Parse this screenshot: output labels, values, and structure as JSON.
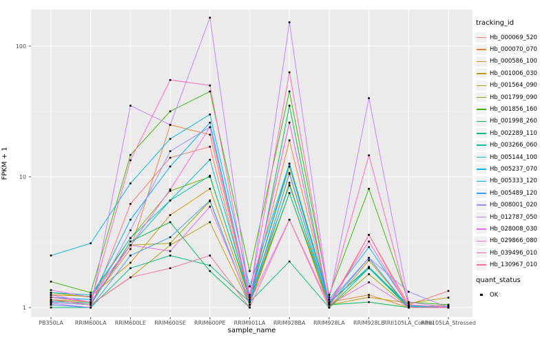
{
  "axes": {
    "x_title": "sample_name",
    "y_title": "FPKM + 1"
  },
  "legend": {
    "title": "tracking_id",
    "position": "right"
  },
  "quant_legend": {
    "title": "quant_status",
    "items": [
      {
        "label": "OK",
        "marker": "black-square"
      }
    ]
  },
  "chart_data": {
    "type": "line",
    "title": "",
    "xlabel": "sample_name",
    "ylabel": "FPKM + 1",
    "y_scale": "log10",
    "ylim": [
      0.85,
      190
    ],
    "grid": true,
    "panel_background": "#EBEBEB",
    "gridline_color": "#FFFFFF",
    "point_marker": "black-square",
    "legend_title": "tracking_id",
    "quant_status_title": "quant_status",
    "quant_status_value": "OK",
    "y_ticks": [
      {
        "v": 1,
        "label": "1"
      },
      {
        "v": 10,
        "label": "10"
      },
      {
        "v": 100,
        "label": "100"
      }
    ],
    "y_minor_ticks": [
      3.162,
      31.62
    ],
    "x_categories": [
      "PB350LA",
      "RRIM600LA",
      "RRIM600LE",
      "RRIM600SE",
      "RRIM600PE",
      "RRIM901LA",
      "RRIM928BA",
      "RRIM928LA",
      "RRIM928LE",
      "RRII105LA_Control",
      "RRII105LA_Stressed"
    ],
    "series": [
      {
        "name": "Hb_000069_520",
        "color": "#F8766D",
        "values": [
          1.05,
          1.0,
          6.2,
          14.0,
          17.0,
          1.1,
          10.5,
          1.05,
          3.6,
          1.05,
          1.34
        ]
      },
      {
        "name": "Hb_000070_070",
        "color": "#EA8331",
        "values": [
          1.2,
          1.1,
          2.8,
          25.0,
          21.0,
          1.15,
          19.0,
          1.1,
          1.25,
          1.0,
          1.05
        ]
      },
      {
        "name": "Hb_000586_100",
        "color": "#D89000",
        "values": [
          1.25,
          1.22,
          2.2,
          5.1,
          8.1,
          1.1,
          7.5,
          1.0,
          2.3,
          1.0,
          1.0
        ]
      },
      {
        "name": "Hb_001006_030",
        "color": "#C09B00",
        "values": [
          1.1,
          1.05,
          1.7,
          3.0,
          4.5,
          1.05,
          7.5,
          1.05,
          1.2,
          1.08,
          1.19
        ]
      },
      {
        "name": "Hb_001564_090",
        "color": "#A3A500",
        "values": [
          1.15,
          1.1,
          3.0,
          3.1,
          6.5,
          1.05,
          9.0,
          1.0,
          1.8,
          1.0,
          1.02
        ]
      },
      {
        "name": "Hb_001799_090",
        "color": "#7CAE00",
        "values": [
          1.3,
          1.2,
          3.4,
          7.8,
          10.0,
          1.2,
          12.0,
          1.1,
          2.0,
          1.05,
          1.0
        ]
      },
      {
        "name": "Hb_001856_160",
        "color": "#39B600",
        "values": [
          1.58,
          1.3,
          14.7,
          31.7,
          45.0,
          1.9,
          45.0,
          1.25,
          8.1,
          1.1,
          1.05
        ]
      },
      {
        "name": "Hb_001998_260",
        "color": "#00BB4E",
        "values": [
          1.1,
          1.05,
          3.2,
          4.5,
          1.9,
          1.0,
          35.0,
          1.05,
          1.1,
          1.0,
          1.0
        ]
      },
      {
        "name": "Hb_002289_110",
        "color": "#00BF7D",
        "values": [
          1.0,
          1.0,
          2.0,
          2.5,
          2.1,
          1.1,
          2.25,
          1.0,
          2.0,
          1.0,
          1.0
        ]
      },
      {
        "name": "Hb_003266_060",
        "color": "#00C1A3",
        "values": [
          1.12,
          1.08,
          3.0,
          6.6,
          10.2,
          1.15,
          7.5,
          1.08,
          2.05,
          1.02,
          1.0
        ]
      },
      {
        "name": "Hb_005144_100",
        "color": "#00BFC4",
        "values": [
          1.3,
          1.25,
          3.4,
          6.6,
          13.5,
          1.2,
          8.6,
          1.1,
          2.0,
          1.02,
          1.0
        ]
      },
      {
        "name": "Hb_005237_070",
        "color": "#00B8E7",
        "values": [
          2.5,
          3.1,
          8.9,
          19.5,
          30.0,
          1.45,
          12.6,
          1.15,
          2.9,
          1.03,
          1.02
        ]
      },
      {
        "name": "Hb_005333_120",
        "color": "#00ACFC",
        "values": [
          1.2,
          1.15,
          4.7,
          12.0,
          26.0,
          1.2,
          12.6,
          1.1,
          2.4,
          1.0,
          1.0
        ]
      },
      {
        "name": "Hb_005489_120",
        "color": "#35A2FF",
        "values": [
          1.05,
          1.0,
          2.5,
          3.45,
          6.6,
          1.05,
          10.7,
          1.05,
          2.4,
          1.0,
          1.0
        ]
      },
      {
        "name": "Hb_008001_020",
        "color": "#9590FF",
        "values": [
          1.1,
          1.05,
          3.9,
          15.7,
          24.0,
          1.2,
          26.0,
          1.1,
          2.4,
          1.32,
          1.0
        ]
      },
      {
        "name": "Hb_012787_050",
        "color": "#C77CFF",
        "values": [
          1.08,
          1.0,
          35.0,
          25.0,
          165.0,
          1.2,
          152.0,
          1.15,
          40.0,
          1.1,
          1.0
        ]
      },
      {
        "name": "Hb_028008_030",
        "color": "#E76BF3",
        "values": [
          1.36,
          1.2,
          3.0,
          2.7,
          5.9,
          1.1,
          4.7,
          1.05,
          1.56,
          1.0,
          1.0
        ]
      },
      {
        "name": "Hb_029866_080",
        "color": "#FA62DB",
        "values": [
          1.25,
          1.1,
          3.0,
          8.0,
          24.0,
          1.15,
          26.0,
          1.1,
          3.2,
          1.0,
          1.0
        ]
      },
      {
        "name": "Hb_039496_010",
        "color": "#FF62BC",
        "values": [
          1.2,
          1.1,
          13.4,
          55.0,
          50.0,
          1.25,
          63.0,
          1.2,
          14.6,
          1.05,
          1.0
        ]
      },
      {
        "name": "Hb_130967_010",
        "color": "#FF6A98",
        "values": [
          1.15,
          1.05,
          1.7,
          2.0,
          2.5,
          1.0,
          4.7,
          1.0,
          3.6,
          1.0,
          1.0
        ]
      }
    ]
  }
}
